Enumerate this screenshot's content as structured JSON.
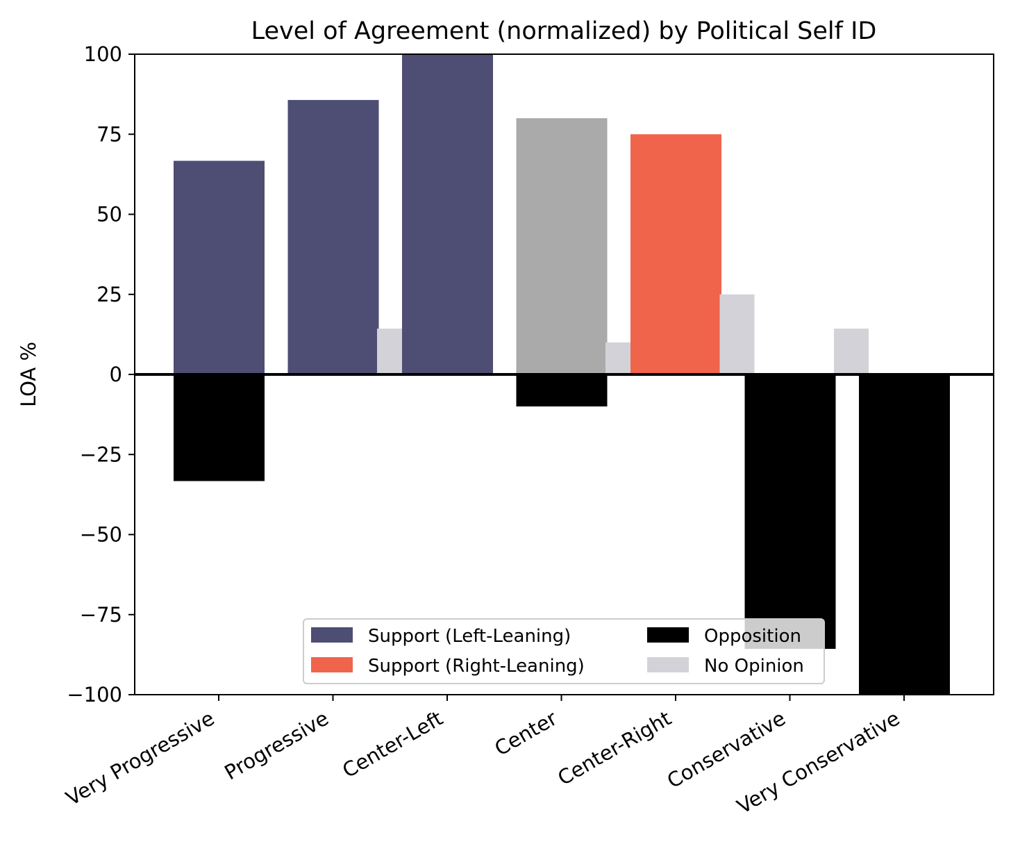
{
  "chart_data": {
    "type": "bar",
    "title": "Level of Agreement (normalized) by Political Self ID",
    "xlabel": "",
    "ylabel": "LOA %",
    "ylim": [
      -100,
      100
    ],
    "yticks": [
      100,
      75,
      50,
      25,
      0,
      -25,
      -50,
      -75,
      -100
    ],
    "ytick_labels": [
      "100",
      "75",
      "50",
      "25",
      "0",
      "−25",
      "−50",
      "−75",
      "−100"
    ],
    "categories": [
      "Very Progressive",
      "Progressive",
      "Center-Left",
      "Center",
      "Center-Right",
      "Conservative",
      "Very Conservative"
    ],
    "support": [
      66.7,
      85.7,
      100,
      80,
      75,
      0,
      0
    ],
    "support_colors": [
      "#4e4d74",
      "#4e4d74",
      "#4e4d74",
      "#aaaaaa",
      "#f0644c",
      "#4e4d74",
      "#4e4d74"
    ],
    "opposition": [
      -33.3,
      0,
      0,
      -10,
      0,
      -85.7,
      -100
    ],
    "no_opinion": [
      0,
      14.3,
      0,
      10,
      25,
      14.3,
      0
    ],
    "series": [
      {
        "name": "Support (Left-Leaning)",
        "color": "#4e4d74"
      },
      {
        "name": "Support (Right-Leaning)",
        "color": "#f0644c"
      },
      {
        "name": "Opposition",
        "color": "#000000"
      },
      {
        "name": "No Opinion",
        "color": "#d3d2d8"
      }
    ],
    "grid": false,
    "legend_position": "lower-center"
  }
}
